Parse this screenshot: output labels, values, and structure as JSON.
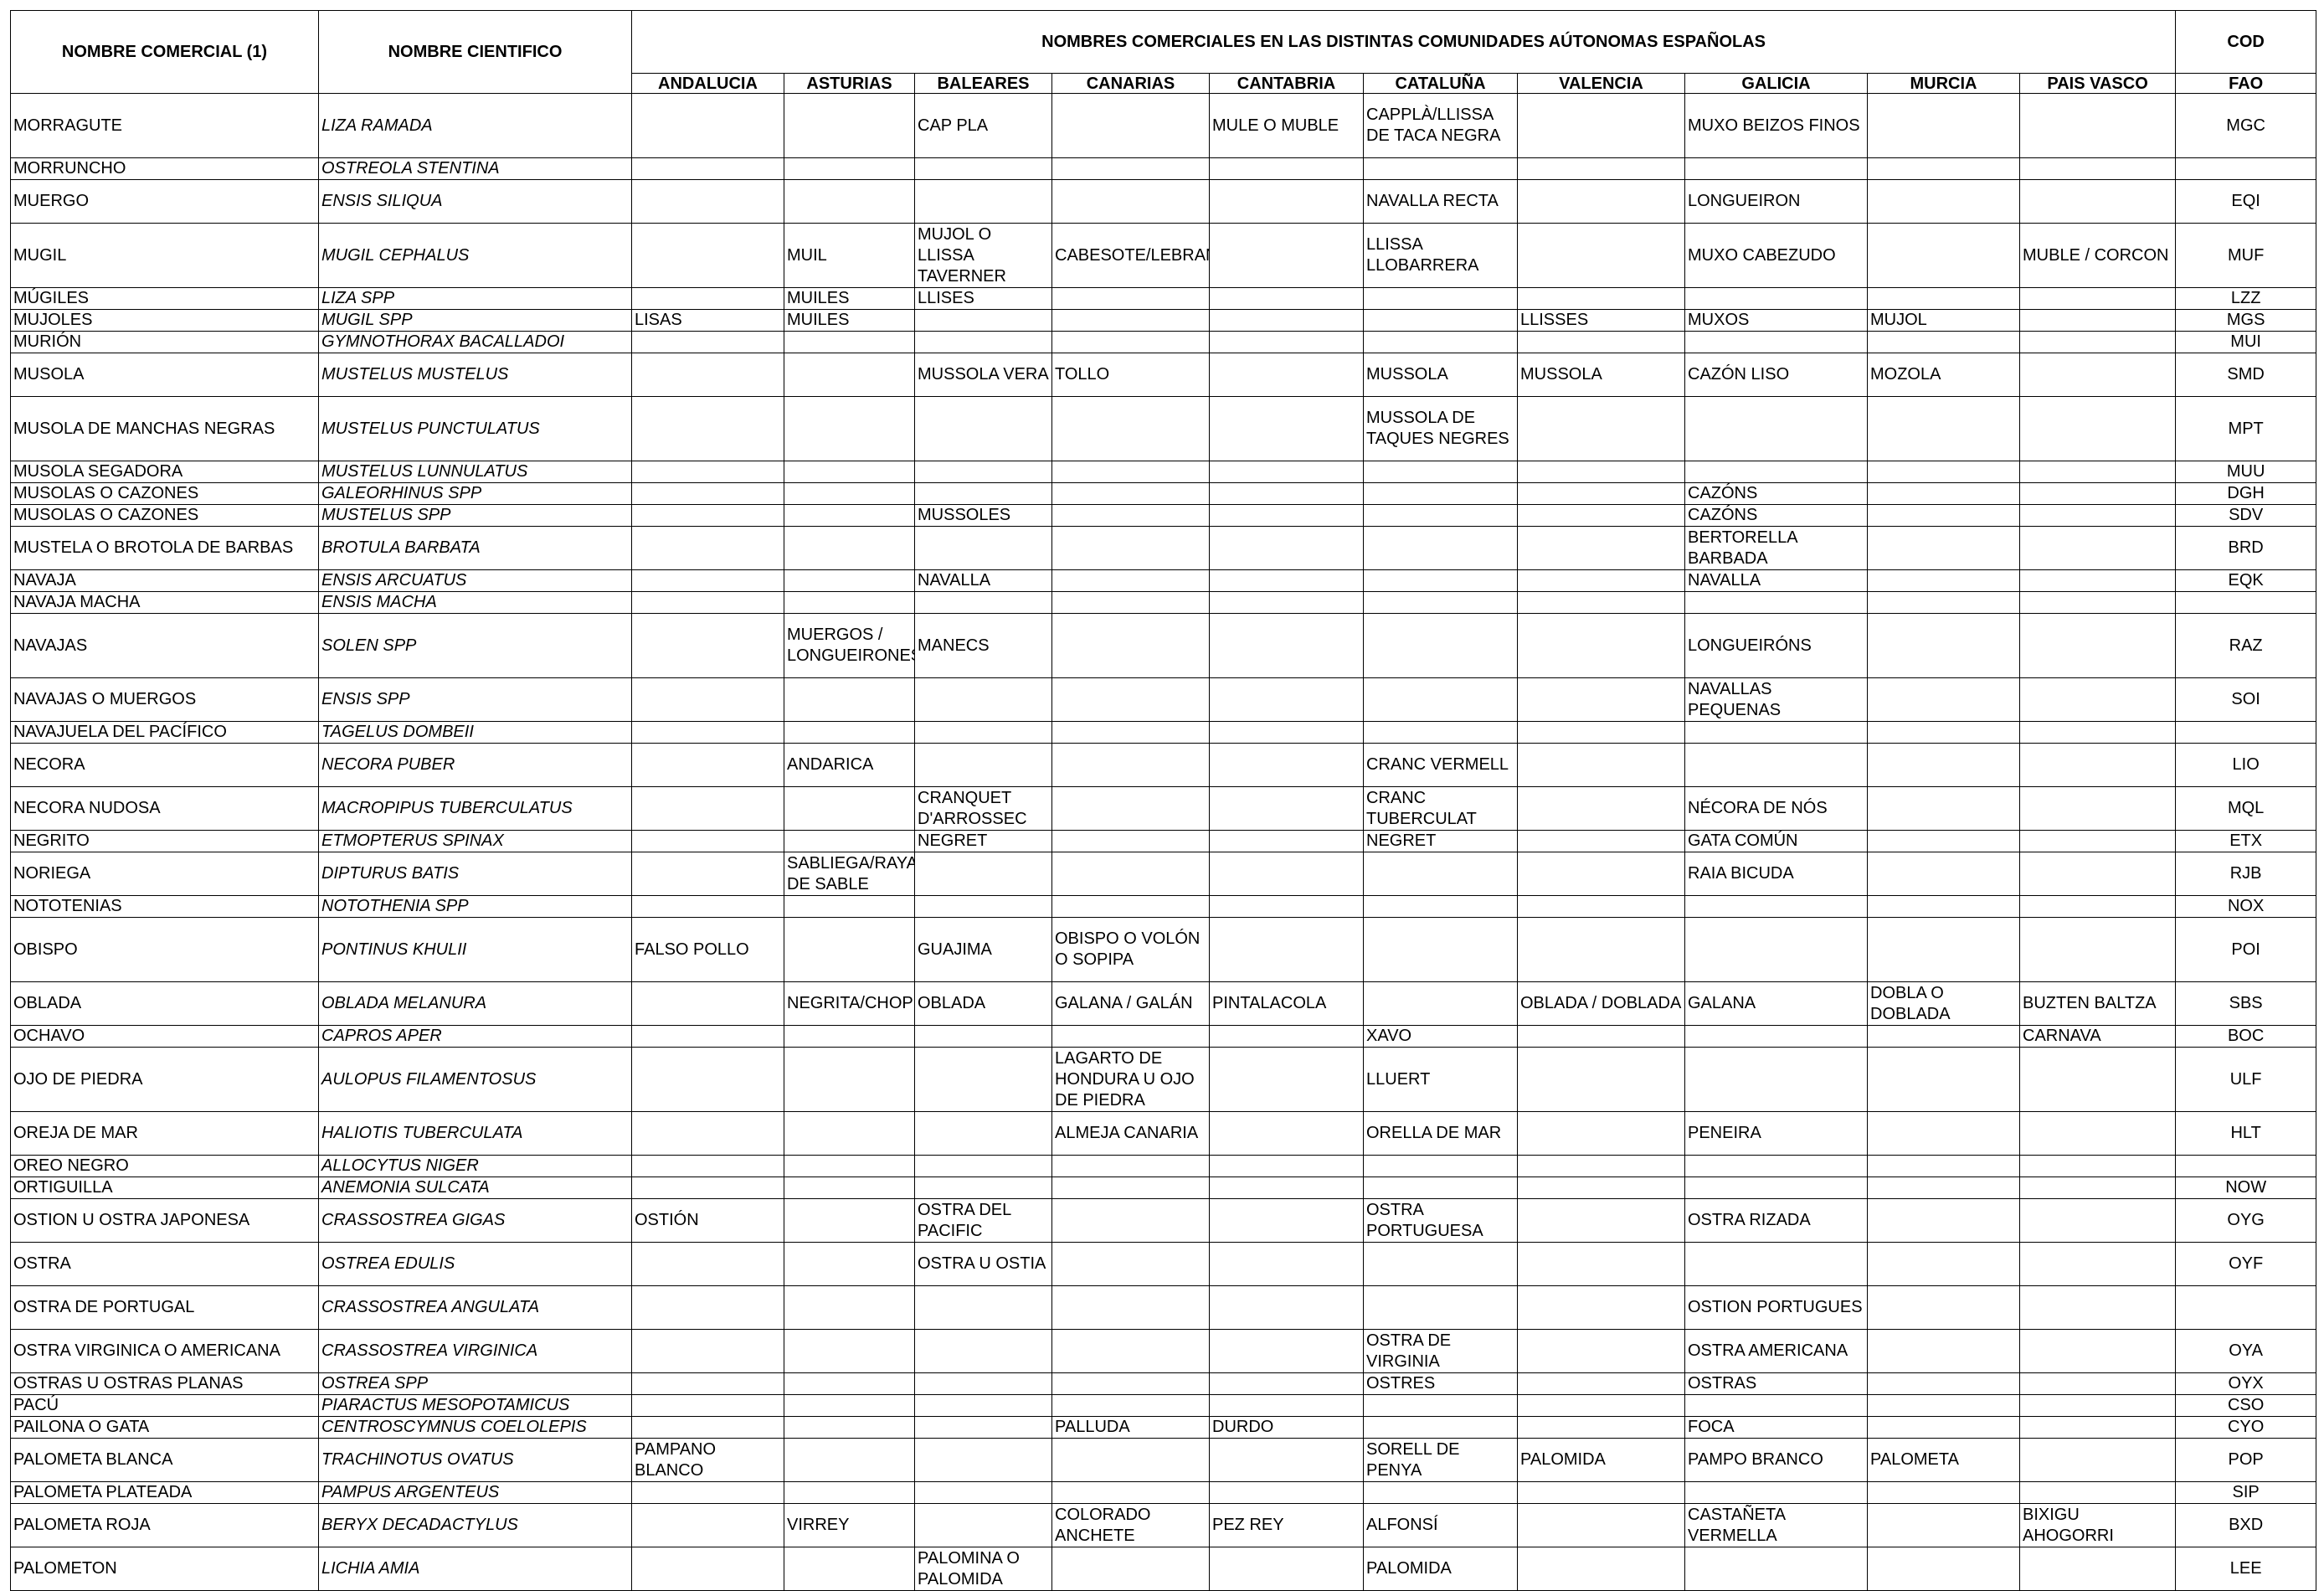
{
  "header": {
    "col_comercial": "NOMBRE COMERCIAL (1)",
    "col_cientifico": "NOMBRE CIENTIFICO",
    "group_title": "NOMBRES COMERCIALES EN LAS DISTINTAS COMUNIDADES AÚTONOMAS ESPAÑOLAS",
    "cod_top": "COD",
    "cod_bottom": "FAO",
    "regions": [
      "ANDALUCIA",
      "ASTURIAS",
      "BALEARES",
      "CANARIAS",
      "CANTABRIA",
      "CATALUÑA",
      "VALENCIA",
      "GALICIA",
      "MURCIA",
      "PAIS VASCO"
    ]
  },
  "rows": [
    {
      "h": 3,
      "c": [
        "MORRAGUTE",
        "LIZA RAMADA",
        "",
        "",
        "CAP PLA",
        "",
        "MULE O MUBLE",
        "CAPPLÀ/LLISSA DE TACA NEGRA",
        "",
        "MUXO BEIZOS FINOS",
        "",
        "",
        "MGC"
      ]
    },
    {
      "h": 1,
      "c": [
        "MORRUNCHO",
        "OSTREOLA STENTINA",
        "",
        "",
        "",
        "",
        "",
        "",
        "",
        "",
        "",
        "",
        ""
      ]
    },
    {
      "h": 2,
      "c": [
        "MUERGO",
        "ENSIS SILIQUA",
        "",
        "",
        "",
        "",
        "",
        "NAVALLA RECTA",
        "",
        "LONGUEIRON",
        "",
        "",
        "EQI"
      ]
    },
    {
      "h": 3,
      "c": [
        "MUGIL",
        "MUGIL CEPHALUS",
        "",
        "MUIL",
        "MUJOL O LLISSA TAVERNER",
        "CABESOTE/LEBRANCHO",
        "",
        "LLISSA LLOBARRERA",
        "",
        "MUXO CABEZUDO",
        "",
        "MUBLE / CORCON",
        "MUF"
      ]
    },
    {
      "h": 1,
      "c": [
        "MÚGILES",
        "LIZA SPP",
        "",
        "MUILES",
        "LLISES",
        "",
        "",
        "",
        "",
        "",
        "",
        "",
        "LZZ"
      ]
    },
    {
      "h": 1,
      "c": [
        "MUJOLES",
        "MUGIL SPP",
        "LISAS",
        "MUILES",
        "",
        "",
        "",
        "",
        "LLISSES",
        "MUXOS",
        "MUJOL",
        "",
        "MGS"
      ]
    },
    {
      "h": 1,
      "c": [
        "MURIÓN",
        "GYMNOTHORAX BACALLADOI",
        "",
        "",
        "",
        "",
        "",
        "",
        "",
        "",
        "",
        "",
        "MUI"
      ]
    },
    {
      "h": 2,
      "c": [
        "MUSOLA",
        "MUSTELUS MUSTELUS",
        "",
        "",
        "MUSSOLA VERA",
        "TOLLO",
        "",
        "MUSSOLA",
        "MUSSOLA",
        "CAZÓN LISO",
        "MOZOLA",
        "",
        "SMD"
      ]
    },
    {
      "h": 3,
      "c": [
        "MUSOLA DE MANCHAS NEGRAS",
        "MUSTELUS PUNCTULATUS",
        "",
        "",
        "",
        "",
        "",
        "MUSSOLA DE TAQUES NEGRES",
        "",
        "",
        "",
        "",
        "MPT"
      ]
    },
    {
      "h": 1,
      "c": [
        "MUSOLA SEGADORA",
        "MUSTELUS LUNNULATUS",
        "",
        "",
        "",
        "",
        "",
        "",
        "",
        "",
        "",
        "",
        "MUU"
      ]
    },
    {
      "h": 1,
      "c": [
        "MUSOLAS  O CAZONES",
        "GALEORHINUS SPP",
        "",
        "",
        "",
        "",
        "",
        "",
        "",
        "CAZÓNS",
        "",
        "",
        "DGH"
      ]
    },
    {
      "h": 1,
      "c": [
        "MUSOLAS O CAZONES",
        "MUSTELUS SPP",
        "",
        "",
        "MUSSOLES",
        "",
        "",
        "",
        "",
        "CAZÓNS",
        "",
        "",
        "SDV"
      ]
    },
    {
      "h": 2,
      "c": [
        "MUSTELA O BROTOLA DE BARBAS",
        "BROTULA BARBATA",
        "",
        "",
        "",
        "",
        "",
        "",
        "",
        "BERTORELLA BARBADA",
        "",
        "",
        "BRD"
      ]
    },
    {
      "h": 1,
      "c": [
        "NAVAJA",
        "ENSIS ARCUATUS",
        "",
        "",
        "NAVALLA",
        "",
        "",
        "",
        "",
        "NAVALLA",
        "",
        "",
        "EQK"
      ]
    },
    {
      "h": 1,
      "c": [
        "NAVAJA MACHA",
        "ENSIS MACHA",
        "",
        "",
        "",
        "",
        "",
        "",
        "",
        "",
        "",
        "",
        ""
      ]
    },
    {
      "h": 3,
      "c": [
        "NAVAJAS",
        "SOLEN SPP",
        "",
        "MUERGOS / LONGUEIRONES",
        "MANECS",
        "",
        "",
        "",
        "",
        "LONGUEIRÓNS",
        "",
        "",
        "RAZ"
      ]
    },
    {
      "h": 2,
      "c": [
        "NAVAJAS O MUERGOS",
        "ENSIS SPP",
        "",
        "",
        "",
        "",
        "",
        "",
        "",
        "NAVALLAS PEQUENAS",
        "",
        "",
        "SOI"
      ]
    },
    {
      "h": 1,
      "c": [
        "NAVAJUELA DEL PACÍFICO",
        "TAGELUS DOMBEII",
        "",
        "",
        "",
        "",
        "",
        "",
        "",
        "",
        "",
        "",
        ""
      ]
    },
    {
      "h": 2,
      "c": [
        "NECORA",
        "NECORA PUBER",
        "",
        "ANDARICA",
        "",
        "",
        "",
        "CRANC VERMELL",
        "",
        "",
        "",
        "",
        "LIO"
      ]
    },
    {
      "h": 2,
      "c": [
        "NECORA NUDOSA",
        "MACROPIPUS TUBERCULATUS",
        "",
        "",
        "CRANQUET D'ARROSSEC",
        "",
        "",
        "CRANC TUBERCULAT",
        "",
        "NÉCORA DE NÓS",
        "",
        "",
        "MQL"
      ]
    },
    {
      "h": 1,
      "c": [
        "NEGRITO",
        "ETMOPTERUS SPINAX",
        "",
        "",
        "NEGRET",
        "",
        "",
        "NEGRET",
        "",
        "GATA COMÚN",
        "",
        "",
        "ETX"
      ]
    },
    {
      "h": 2,
      "c": [
        "NORIEGA",
        "DIPTURUS BATIS",
        "",
        "SABLIEGA/RAYA DE SABLE",
        "",
        "",
        "",
        "",
        "",
        "RAIA BICUDA",
        "",
        "",
        "RJB"
      ]
    },
    {
      "h": 1,
      "c": [
        "NOTOTENIAS",
        "NOTOTHENIA SPP",
        "",
        "",
        "",
        "",
        "",
        "",
        "",
        "",
        "",
        "",
        "NOX"
      ]
    },
    {
      "h": 3,
      "c": [
        "OBISPO",
        "PONTINUS KHULII",
        "FALSO POLLO",
        "",
        "GUAJIMA",
        "OBISPO O VOLÓN O SOPIPA",
        "",
        "",
        "",
        "",
        "",
        "",
        "POI"
      ]
    },
    {
      "h": 2,
      "c": [
        "OBLADA",
        "OBLADA MELANURA",
        "",
        "NEGRITA/CHOPETA",
        "OBLADA",
        "GALANA / GALÁN",
        "PINTALACOLA",
        "",
        "OBLADA / DOBLADA",
        "GALANA",
        "DOBLA O DOBLADA",
        "BUZTEN BALTZA",
        "SBS"
      ]
    },
    {
      "h": 1,
      "c": [
        "OCHAVO",
        "CAPROS APER",
        "",
        "",
        "",
        "",
        "",
        "XAVO",
        "",
        "",
        "",
        "CARNAVA",
        "BOC"
      ]
    },
    {
      "h": 3,
      "c": [
        "OJO DE PIEDRA",
        "AULOPUS FILAMENTOSUS",
        "",
        "",
        "",
        "LAGARTO DE HONDURA U OJO DE PIEDRA",
        "",
        "LLUERT",
        "",
        "",
        "",
        "",
        "ULF"
      ]
    },
    {
      "h": 2,
      "c": [
        "OREJA DE MAR",
        "HALIOTIS TUBERCULATA",
        "",
        "",
        "",
        "ALMEJA CANARIA",
        "",
        "ORELLA DE MAR",
        "",
        "PENEIRA",
        "",
        "",
        "HLT"
      ]
    },
    {
      "h": 1,
      "c": [
        "OREO NEGRO",
        "ALLOCYTUS NIGER",
        "",
        "",
        "",
        "",
        "",
        "",
        "",
        "",
        "",
        "",
        ""
      ]
    },
    {
      "h": 1,
      "c": [
        "ORTIGUILLA",
        "ANEMONIA SULCATA",
        "",
        "",
        "",
        "",
        "",
        "",
        "",
        "",
        "",
        "",
        "NOW"
      ]
    },
    {
      "h": 2,
      "c": [
        "OSTION U OSTRA JAPONESA",
        "CRASSOSTREA GIGAS",
        "OSTIÓN",
        "",
        "OSTRA DEL PACIFIC",
        "",
        "",
        "OSTRA PORTUGUESA",
        "",
        "OSTRA RIZADA",
        "",
        "",
        "OYG"
      ]
    },
    {
      "h": 2,
      "c": [
        "OSTRA",
        "OSTREA EDULIS",
        "",
        "",
        "OSTRA U OSTIA",
        "",
        "",
        "",
        "",
        "",
        "",
        "",
        "OYF"
      ]
    },
    {
      "h": 2,
      "c": [
        "OSTRA DE PORTUGAL",
        "CRASSOSTREA ANGULATA",
        "",
        "",
        "",
        "",
        "",
        "",
        "",
        "OSTION PORTUGUES",
        "",
        "",
        ""
      ]
    },
    {
      "h": 2,
      "c": [
        "OSTRA VIRGINICA O AMERICANA",
        "CRASSOSTREA VIRGINICA",
        "",
        "",
        "",
        "",
        "",
        "OSTRA DE VIRGINIA",
        "",
        "OSTRA AMERICANA",
        "",
        "",
        "OYA"
      ]
    },
    {
      "h": 1,
      "c": [
        "OSTRAS U OSTRAS PLANAS",
        "OSTREA SPP",
        "",
        "",
        "",
        "",
        "",
        "OSTRES",
        "",
        "OSTRAS",
        "",
        "",
        "OYX"
      ]
    },
    {
      "h": 1,
      "c": [
        "PACÚ",
        "PIARACTUS MESOPOTAMICUS",
        "",
        "",
        "",
        "",
        "",
        "",
        "",
        "",
        "",
        "",
        "CSO"
      ]
    },
    {
      "h": 1,
      "c": [
        "PAILONA O GATA",
        "CENTROSCYMNUS COELOLEPIS",
        "",
        "",
        "",
        "PALLUDA",
        "DURDO",
        "",
        "",
        "FOCA",
        "",
        "",
        "CYO"
      ]
    },
    {
      "h": 2,
      "c": [
        "PALOMETA BLANCA",
        "TRACHINOTUS OVATUS",
        "PAMPANO BLANCO",
        "",
        "",
        "",
        "",
        "SORELL DE PENYA",
        "PALOMIDA",
        "PAMPO BRANCO",
        "PALOMETA",
        "",
        "POP"
      ]
    },
    {
      "h": 1,
      "c": [
        "PALOMETA PLATEADA",
        "PAMPUS ARGENTEUS",
        "",
        "",
        "",
        "",
        "",
        "",
        "",
        "",
        "",
        "",
        "SIP"
      ]
    },
    {
      "h": 2,
      "c": [
        "PALOMETA ROJA",
        "BERYX DECADACTYLUS",
        "",
        "VIRREY",
        "",
        "COLORADO ANCHETE",
        "PEZ REY",
        "ALFONSÍ",
        "",
        "CASTAÑETA VERMELLA",
        "",
        "BIXIGU AHOGORRI",
        "BXD"
      ]
    },
    {
      "h": 2,
      "c": [
        "PALOMETON",
        "LICHIA AMIA",
        "",
        "",
        "PALOMINA O PALOMIDA",
        "",
        "",
        "PALOMIDA",
        "",
        "",
        "",
        "",
        "LEE"
      ]
    }
  ]
}
